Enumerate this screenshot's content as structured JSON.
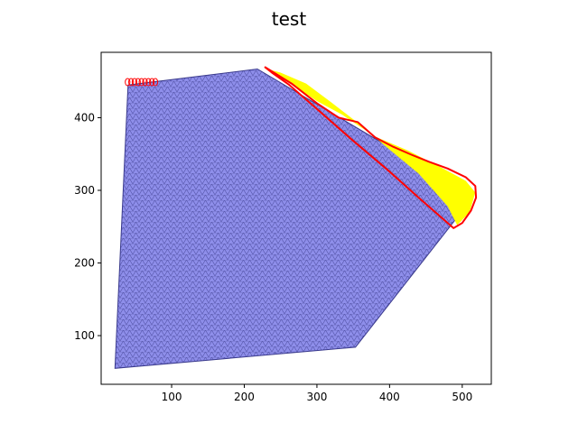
{
  "chart_data": {
    "type": "area",
    "title": "test",
    "xlabel": "",
    "ylabel": "",
    "xlim": [
      3,
      540
    ],
    "ylim": [
      33,
      490
    ],
    "xticks": [
      100,
      200,
      300,
      400,
      500
    ],
    "yticks": [
      100,
      200,
      300,
      400
    ],
    "grid": false,
    "series": [
      {
        "kind": "polygon",
        "fill": "#8e8eea",
        "edge": "#3a3a8c",
        "points": [
          [
            22,
            55
          ],
          [
            40,
            445
          ],
          [
            218,
            467
          ],
          [
            512,
            293
          ],
          [
            505,
            278
          ],
          [
            353,
            84
          ]
        ]
      },
      {
        "kind": "band",
        "fill": "#ffff00",
        "points": [
          [
            228,
            468
          ],
          [
            262,
            448
          ],
          [
            300,
            423
          ],
          [
            335,
            404
          ],
          [
            380,
            374
          ],
          [
            425,
            355
          ],
          [
            470,
            332
          ],
          [
            505,
            313
          ],
          [
            518,
            297
          ],
          [
            510,
            270
          ],
          [
            493,
            252
          ],
          [
            480,
            278
          ],
          [
            440,
            323
          ],
          [
            400,
            356
          ],
          [
            360,
            390
          ],
          [
            320,
            421
          ],
          [
            285,
            447
          ],
          [
            250,
            462
          ]
        ]
      },
      {
        "kind": "line",
        "color": "#ff0000",
        "points": [
          [
            228,
            470
          ],
          [
            265,
            447
          ],
          [
            300,
            420
          ],
          [
            330,
            400
          ],
          [
            356,
            394
          ],
          [
            380,
            373
          ],
          [
            405,
            360
          ],
          [
            430,
            349
          ],
          [
            455,
            339
          ],
          [
            480,
            330
          ],
          [
            505,
            318
          ],
          [
            518,
            306
          ],
          [
            519,
            290
          ],
          [
            512,
            272
          ],
          [
            500,
            255
          ],
          [
            488,
            248
          ],
          [
            440,
            290
          ],
          [
            395,
            330
          ],
          [
            350,
            368
          ],
          [
            300,
            412
          ],
          [
            262,
            445
          ],
          [
            238,
            462
          ],
          [
            228,
            470
          ]
        ]
      },
      {
        "kind": "cluster",
        "color": "#ff0000",
        "x_range": [
          37,
          80
        ],
        "y_range": [
          444,
          454
        ]
      }
    ]
  }
}
